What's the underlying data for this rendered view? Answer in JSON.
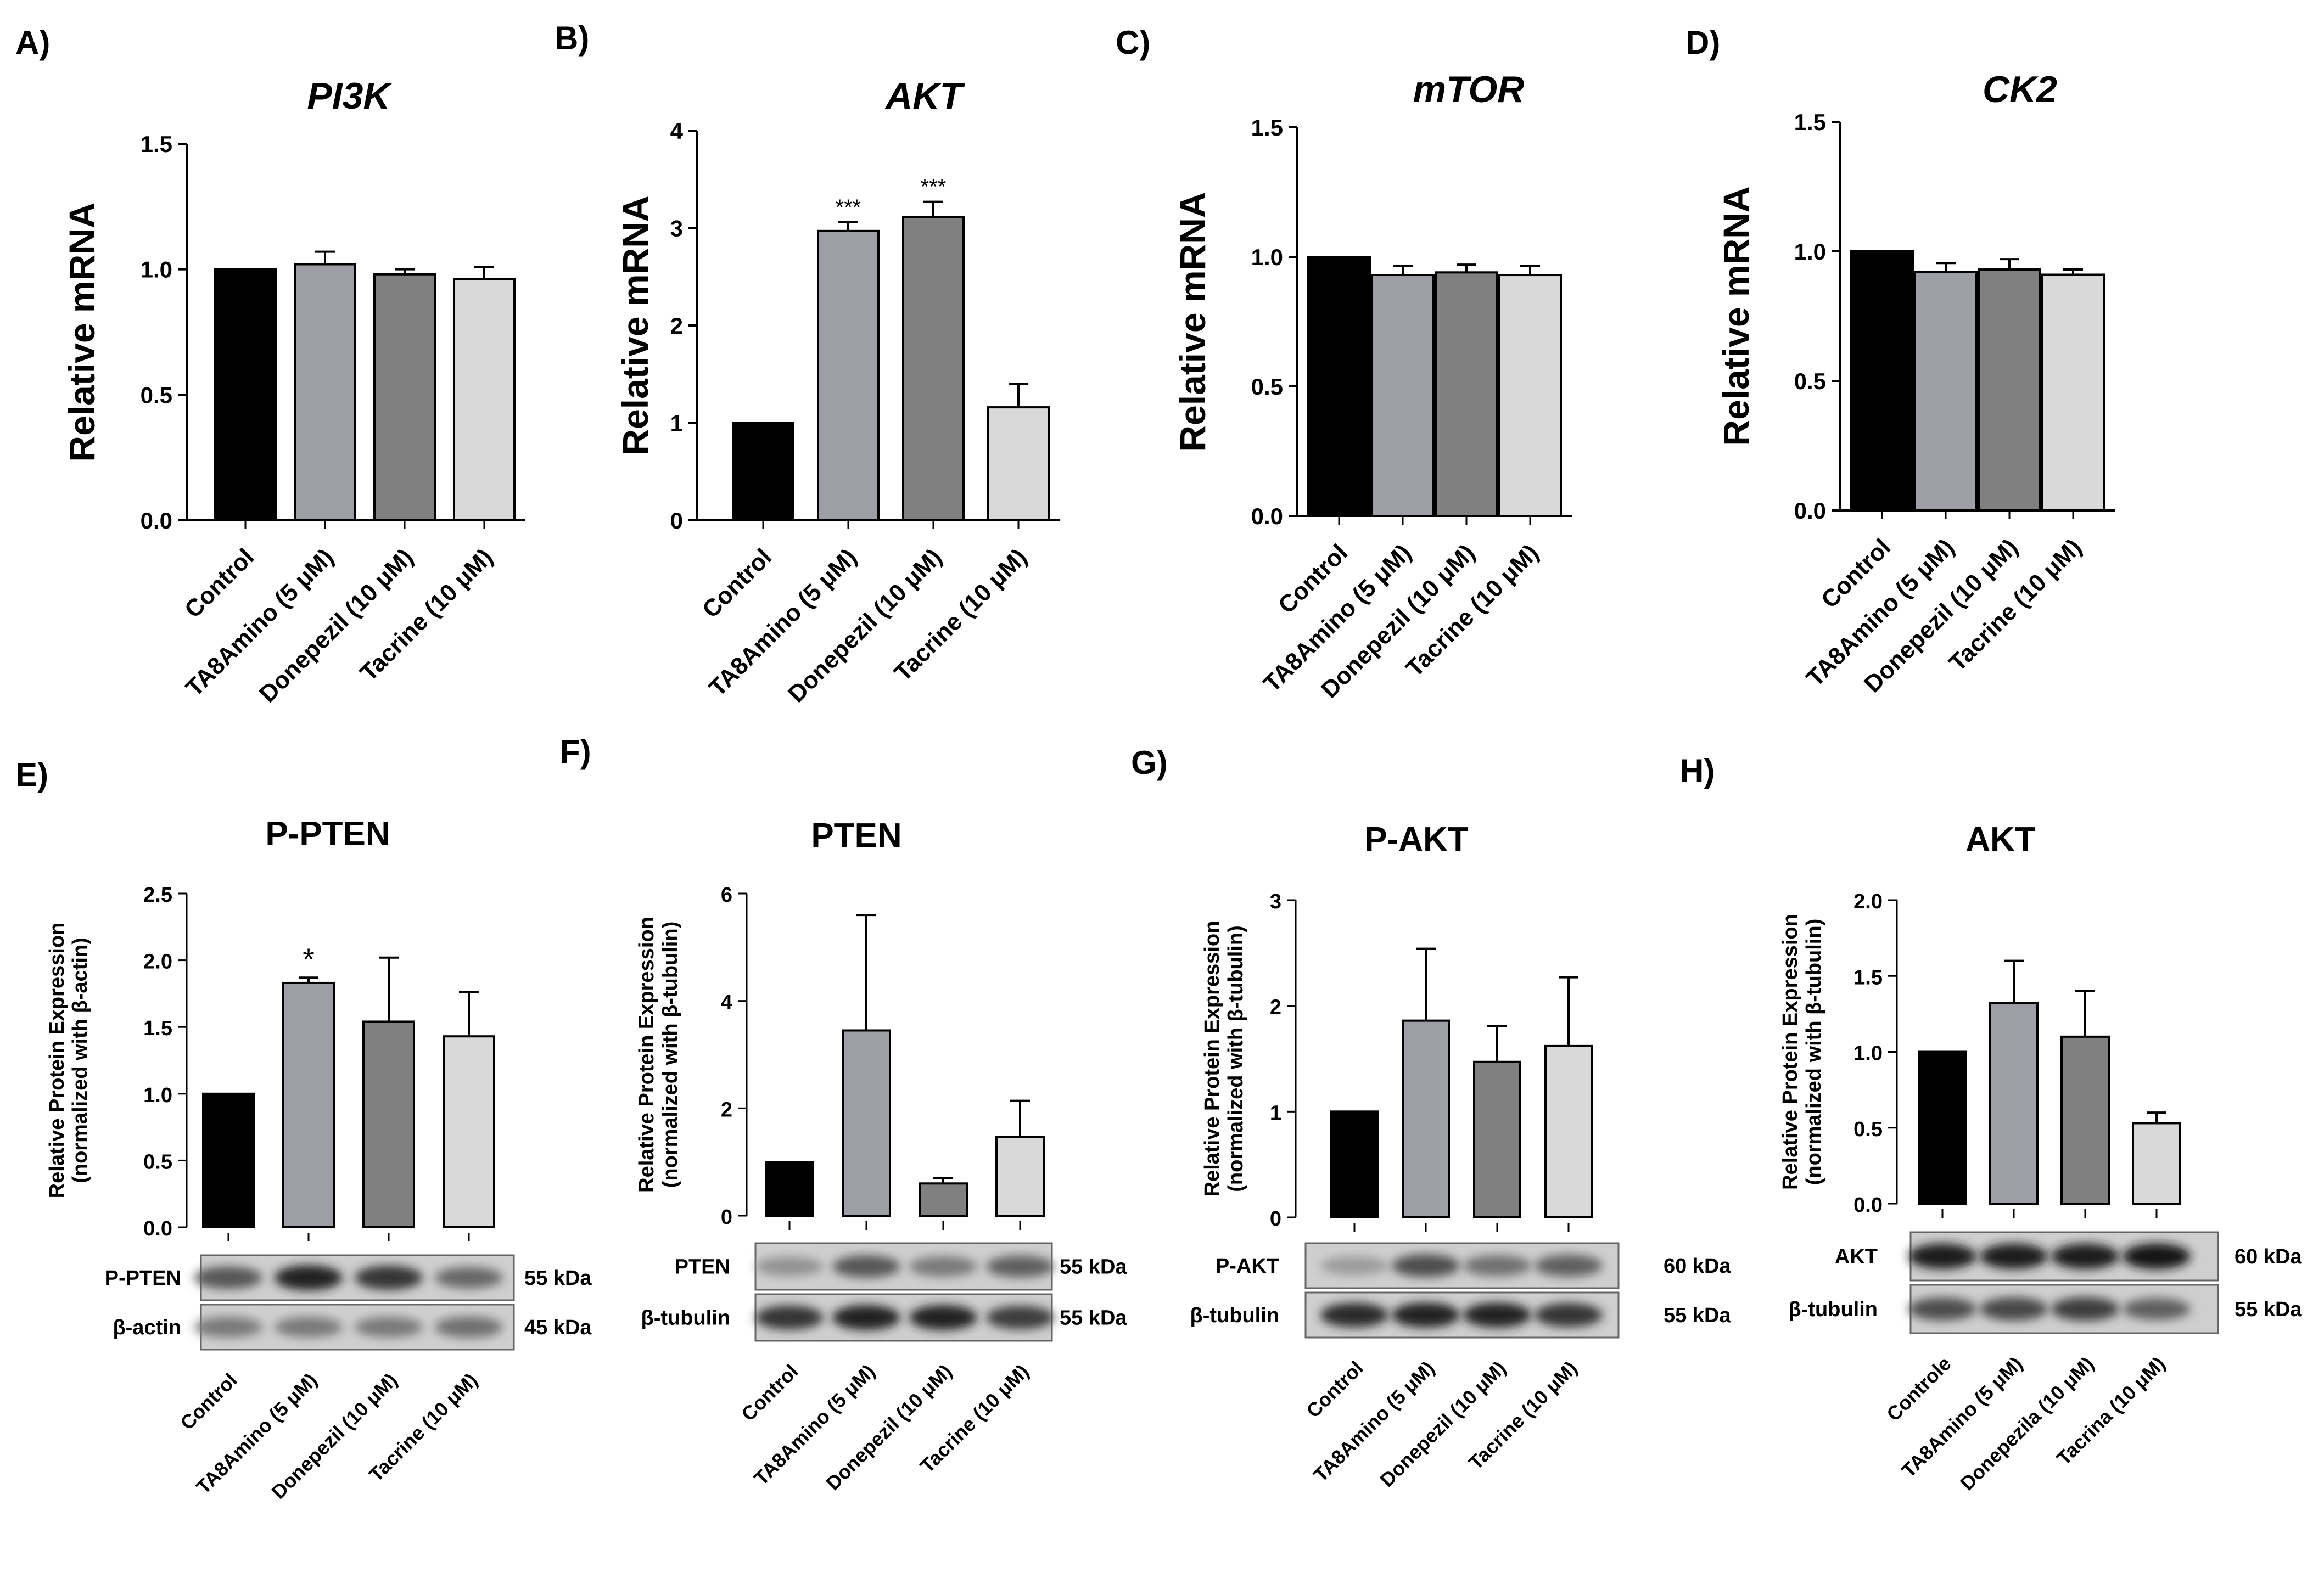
{
  "colors": [
    "#000000",
    "#9e9ea6",
    "#808080",
    "#d9d9d9"
  ],
  "chart_data": [
    {
      "id": "A",
      "panel_label": "A)",
      "type": "bar",
      "title": "PI3K",
      "italic_title": true,
      "style": "mrna",
      "ylabel": "Relative mRNA",
      "ylim": [
        0,
        1.5
      ],
      "yticks": [
        "0.0",
        "0.5",
        "1.0",
        "1.5"
      ],
      "categories": [
        "Control",
        "TA8Amino (5 μM)",
        "Donepezil (10 μM)",
        "Tacrine (10 μM)"
      ],
      "values": [
        1.0,
        1.02,
        0.98,
        0.96
      ],
      "errors": [
        0,
        0.05,
        0.02,
        0.05
      ],
      "annotations": [
        "",
        "",
        "",
        ""
      ]
    },
    {
      "id": "B",
      "panel_label": "B)",
      "type": "bar",
      "title": "AKT",
      "italic_title": true,
      "style": "mrna",
      "ylabel": "Relative mRNA",
      "ylim": [
        0,
        4
      ],
      "yticks": [
        "0",
        "1",
        "2",
        "3",
        "4"
      ],
      "categories": [
        "Control",
        "TA8Amino (5 μM)",
        "Donepezil (10 μM)",
        "Tacrine  (10 μM)"
      ],
      "values": [
        1.0,
        2.97,
        3.11,
        1.16
      ],
      "errors": [
        0,
        0.09,
        0.16,
        0.24
      ],
      "annotations": [
        "",
        "***",
        "***",
        ""
      ]
    },
    {
      "id": "C",
      "panel_label": "C)",
      "type": "bar",
      "title": "mTOR",
      "italic_title": true,
      "style": "mrna",
      "ylabel": "Relative mRNA",
      "ylim": [
        0,
        1.5
      ],
      "yticks": [
        "0.0",
        "0.5",
        "1.0",
        "1.5"
      ],
      "categories": [
        "Control",
        "TA8Amino (5 μM)",
        "Donepezil (10 μM)",
        "Tacrine (10 μM)"
      ],
      "values": [
        1.0,
        0.93,
        0.94,
        0.93
      ],
      "errors": [
        0,
        0.035,
        0.03,
        0.035
      ],
      "annotations": [
        "",
        "",
        "",
        ""
      ]
    },
    {
      "id": "D",
      "panel_label": "D)",
      "type": "bar",
      "title": "CK2",
      "italic_title": true,
      "style": "mrna",
      "ylabel": "Relative mRNA",
      "ylim": [
        0,
        1.5
      ],
      "yticks": [
        "0.0",
        "0.5",
        "1.0",
        "1.5"
      ],
      "categories": [
        "Control",
        "TA8Amino (5 μM)",
        "Donepezil (10 μM)",
        "Tacrine (10 μM)"
      ],
      "values": [
        1.0,
        0.92,
        0.93,
        0.91
      ],
      "errors": [
        0,
        0.035,
        0.04,
        0.02
      ],
      "annotations": [
        "",
        "",
        "",
        ""
      ]
    },
    {
      "id": "E",
      "panel_label": "E)",
      "type": "bar",
      "title": "P-PTEN",
      "italic_title": false,
      "style": "protein",
      "ylabel": [
        "Relative Protein Expression",
        "(normalized with  β-actin)"
      ],
      "ylim": [
        0,
        2.5
      ],
      "yticks": [
        "0.0",
        "0.5",
        "1.0",
        "1.5",
        "2.0",
        "2.5"
      ],
      "categories": [
        "Control",
        "TA8Amino (5 μM)",
        "Donepezil (10 μM)",
        "Tacrine (10 μM)"
      ],
      "values": [
        1.0,
        1.83,
        1.54,
        1.43
      ],
      "errors": [
        0,
        0.04,
        0.48,
        0.33
      ],
      "annotations": [
        "",
        "*",
        "",
        ""
      ],
      "blots": [
        {
          "label": "P-PTEN",
          "kda": "55 kDa",
          "intensity": [
            0.55,
            0.85,
            0.75,
            0.45
          ]
        },
        {
          "label": "β-actin",
          "kda": "45 kDa",
          "intensity": [
            0.35,
            0.35,
            0.35,
            0.4
          ]
        }
      ]
    },
    {
      "id": "F",
      "panel_label": "F)",
      "type": "bar",
      "title": "PTEN",
      "italic_title": false,
      "style": "protein",
      "ylabel": [
        "Relative Protein Expression",
        "(normalized with  β-tubulin)"
      ],
      "ylim": [
        0,
        6
      ],
      "yticks": [
        "0",
        "2",
        "4",
        "6"
      ],
      "categories": [
        "Control",
        "TA8Amino (5 μM)",
        "Donepezil (10 μM)",
        "Tacrine (10 μM)"
      ],
      "values": [
        1.0,
        3.45,
        0.6,
        1.47
      ],
      "errors": [
        0,
        2.15,
        0.1,
        0.67
      ],
      "annotations": [
        "",
        "",
        "",
        ""
      ],
      "blots": [
        {
          "label": "PTEN",
          "kda": "55 kDa",
          "intensity": [
            0.2,
            0.55,
            0.35,
            0.5
          ]
        },
        {
          "label": "β-tubulin",
          "kda": "55 kDa",
          "intensity": [
            0.75,
            0.85,
            0.85,
            0.7
          ]
        }
      ]
    },
    {
      "id": "G",
      "panel_label": "G)",
      "type": "bar",
      "title": "P-AKT",
      "italic_title": false,
      "style": "protein",
      "ylabel": [
        "Relative Protein Expression",
        "(normalized with  β-tubulin)"
      ],
      "ylim": [
        0,
        3
      ],
      "yticks": [
        "0",
        "1",
        "2",
        "3"
      ],
      "categories": [
        "Control",
        "TA8Amino (5 μM)",
        "Donepezil (10 μM)",
        "Tacrine (10 μM)"
      ],
      "values": [
        1.0,
        1.86,
        1.47,
        1.62
      ],
      "errors": [
        0,
        0.68,
        0.34,
        0.65
      ],
      "annotations": [
        "",
        "",
        "",
        ""
      ],
      "blots": [
        {
          "label": "P-AKT",
          "kda": "60 kDa",
          "intensity": [
            0.15,
            0.6,
            0.4,
            0.5
          ]
        },
        {
          "label": "β-tubulin",
          "kda": "55 kDa",
          "intensity": [
            0.8,
            0.85,
            0.85,
            0.75
          ]
        }
      ]
    },
    {
      "id": "H",
      "panel_label": "H)",
      "type": "bar",
      "title": "AKT",
      "italic_title": false,
      "style": "protein",
      "ylabel": [
        "Relative Protein Expression",
        "(normalized with  β-tubulin)"
      ],
      "ylim": [
        0,
        2.0
      ],
      "yticks": [
        "0.0",
        "0.5",
        "1.0",
        "1.5",
        "2.0"
      ],
      "categories": [
        "Controle",
        "TA8Amino (5 μM)",
        "Donepezila (10 μM)",
        "Tacrina (10 μM)"
      ],
      "values": [
        1.0,
        1.32,
        1.1,
        0.53
      ],
      "errors": [
        0,
        0.28,
        0.3,
        0.07
      ],
      "annotations": [
        "",
        "",
        "",
        ""
      ],
      "blots": [
        {
          "label": "AKT",
          "kda": "60 kDa",
          "intensity": [
            0.9,
            0.9,
            0.9,
            0.95
          ]
        },
        {
          "label": "β-tubulin",
          "kda": "55 kDa",
          "intensity": [
            0.6,
            0.65,
            0.7,
            0.5
          ]
        }
      ]
    }
  ]
}
